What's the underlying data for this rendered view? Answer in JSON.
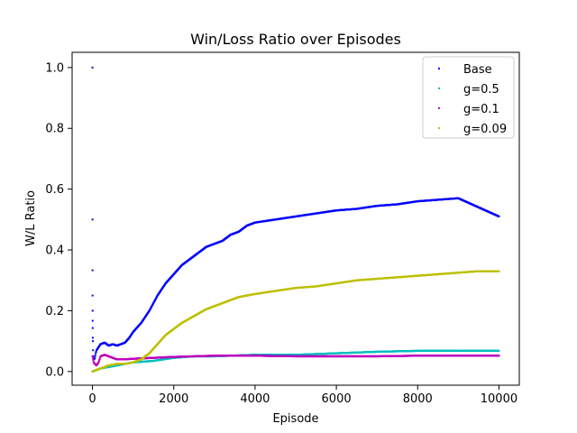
{
  "chart_data": {
    "type": "scatter",
    "title": "Win/Loss Ratio over Episodes",
    "xlabel": "Episode",
    "ylabel": "W/L Ratio",
    "xlim": [
      -500,
      10500
    ],
    "ylim": [
      -0.045,
      1.05
    ],
    "xticks": [
      "0",
      "2000",
      "4000",
      "6000",
      "8000",
      "10000"
    ],
    "yticks": [
      "0.0",
      "0.2",
      "0.4",
      "0.6",
      "0.8",
      "1.0"
    ],
    "grid": false,
    "legend_position": "top-right",
    "series": [
      {
        "name": "Base",
        "color": "#0000ff",
        "points": [
          [
            0,
            1.0
          ],
          [
            1,
            0.5
          ],
          [
            2,
            0.333
          ],
          [
            3,
            0.25
          ],
          [
            4,
            0.2
          ],
          [
            5,
            0.167
          ],
          [
            6,
            0.143
          ],
          [
            8,
            0.111
          ],
          [
            10,
            0.1
          ],
          [
            15,
            0.07
          ],
          [
            25,
            0.05
          ],
          [
            40,
            0.04
          ],
          [
            60,
            0.045
          ],
          [
            80,
            0.06
          ],
          [
            100,
            0.07
          ],
          [
            150,
            0.08
          ],
          [
            200,
            0.09
          ],
          [
            300,
            0.095
          ],
          [
            400,
            0.085
          ],
          [
            500,
            0.09
          ],
          [
            600,
            0.085
          ],
          [
            700,
            0.09
          ],
          [
            800,
            0.095
          ],
          [
            900,
            0.11
          ],
          [
            1000,
            0.13
          ],
          [
            1200,
            0.16
          ],
          [
            1400,
            0.2
          ],
          [
            1600,
            0.25
          ],
          [
            1800,
            0.29
          ],
          [
            2000,
            0.32
          ],
          [
            2200,
            0.35
          ],
          [
            2400,
            0.37
          ],
          [
            2600,
            0.39
          ],
          [
            2800,
            0.41
          ],
          [
            3000,
            0.42
          ],
          [
            3200,
            0.43
          ],
          [
            3400,
            0.45
          ],
          [
            3600,
            0.46
          ],
          [
            3800,
            0.48
          ],
          [
            4000,
            0.49
          ],
          [
            4500,
            0.5
          ],
          [
            5000,
            0.51
          ],
          [
            5500,
            0.52
          ],
          [
            6000,
            0.53
          ],
          [
            6500,
            0.535
          ],
          [
            7000,
            0.545
          ],
          [
            7500,
            0.55
          ],
          [
            8000,
            0.56
          ],
          [
            8500,
            0.565
          ],
          [
            9000,
            0.57
          ],
          [
            9500,
            0.54
          ],
          [
            10000,
            0.51
          ]
        ]
      },
      {
        "name": "g=0.5",
        "color": "#00bfbf",
        "points": [
          [
            0,
            0.0
          ],
          [
            100,
            0.005
          ],
          [
            200,
            0.01
          ],
          [
            400,
            0.015
          ],
          [
            600,
            0.02
          ],
          [
            800,
            0.025
          ],
          [
            1000,
            0.03
          ],
          [
            1500,
            0.035
          ],
          [
            2000,
            0.045
          ],
          [
            2500,
            0.05
          ],
          [
            3000,
            0.05
          ],
          [
            4000,
            0.055
          ],
          [
            5000,
            0.055
          ],
          [
            6000,
            0.06
          ],
          [
            7000,
            0.065
          ],
          [
            8000,
            0.068
          ],
          [
            9000,
            0.068
          ],
          [
            10000,
            0.068
          ]
        ]
      },
      {
        "name": "g=0.1",
        "color": "#bf00bf",
        "points": [
          [
            0,
            0.05
          ],
          [
            30,
            0.03
          ],
          [
            60,
            0.025
          ],
          [
            100,
            0.02
          ],
          [
            150,
            0.03
          ],
          [
            200,
            0.05
          ],
          [
            300,
            0.055
          ],
          [
            400,
            0.05
          ],
          [
            500,
            0.045
          ],
          [
            600,
            0.04
          ],
          [
            700,
            0.04
          ],
          [
            800,
            0.04
          ],
          [
            1000,
            0.042
          ],
          [
            1500,
            0.045
          ],
          [
            2000,
            0.048
          ],
          [
            2500,
            0.05
          ],
          [
            3000,
            0.052
          ],
          [
            4000,
            0.052
          ],
          [
            5000,
            0.05
          ],
          [
            6000,
            0.05
          ],
          [
            7000,
            0.05
          ],
          [
            8000,
            0.052
          ],
          [
            9000,
            0.052
          ],
          [
            10000,
            0.052
          ]
        ]
      },
      {
        "name": "g=0.09",
        "color": "#bfbf00",
        "points": [
          [
            0,
            0.0
          ],
          [
            100,
            0.005
          ],
          [
            200,
            0.01
          ],
          [
            300,
            0.015
          ],
          [
            400,
            0.02
          ],
          [
            600,
            0.025
          ],
          [
            800,
            0.025
          ],
          [
            1000,
            0.03
          ],
          [
            1200,
            0.04
          ],
          [
            1400,
            0.06
          ],
          [
            1600,
            0.09
          ],
          [
            1800,
            0.12
          ],
          [
            2000,
            0.14
          ],
          [
            2200,
            0.16
          ],
          [
            2400,
            0.175
          ],
          [
            2600,
            0.19
          ],
          [
            2800,
            0.205
          ],
          [
            3000,
            0.215
          ],
          [
            3200,
            0.225
          ],
          [
            3400,
            0.235
          ],
          [
            3600,
            0.245
          ],
          [
            4000,
            0.255
          ],
          [
            4500,
            0.265
          ],
          [
            5000,
            0.275
          ],
          [
            5500,
            0.28
          ],
          [
            6000,
            0.29
          ],
          [
            6500,
            0.3
          ],
          [
            7000,
            0.305
          ],
          [
            7500,
            0.31
          ],
          [
            8000,
            0.315
          ],
          [
            8500,
            0.32
          ],
          [
            9000,
            0.325
          ],
          [
            9500,
            0.33
          ],
          [
            10000,
            0.33
          ]
        ]
      }
    ]
  }
}
